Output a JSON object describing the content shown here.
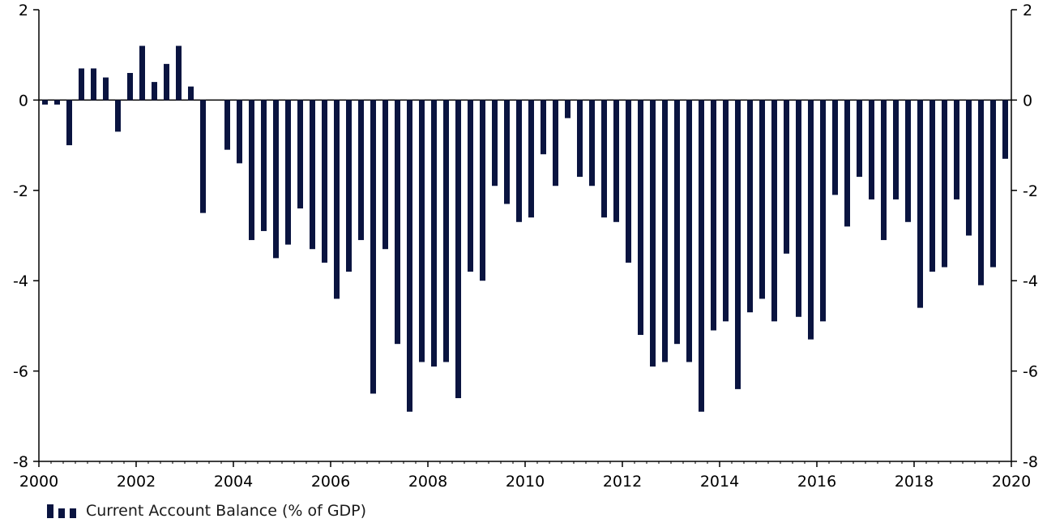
{
  "chart_data": {
    "type": "bar",
    "title": "",
    "xlabel": "",
    "ylabel": "",
    "ylim": [
      -8,
      2
    ],
    "xlim": [
      2000,
      2020
    ],
    "y_ticks_left": [
      "2",
      "0",
      "-2",
      "-4",
      "-6",
      "-8"
    ],
    "y_ticks_right": [
      "2",
      "0",
      "-2",
      "-4",
      "-6",
      "-8"
    ],
    "x_ticks": [
      "2000",
      "2002",
      "2004",
      "2006",
      "2008",
      "2010",
      "2012",
      "2014",
      "2016",
      "2018",
      "2020"
    ],
    "grid": false,
    "legend_position": "bottom-left",
    "bar_color": "#0a1440",
    "series": [
      {
        "name": "Current Account Balance (% of GDP)",
        "x": [
          "2000 Q1",
          "2000 Q2",
          "2000 Q3",
          "2000 Q4",
          "2001 Q1",
          "2001 Q2",
          "2001 Q3",
          "2001 Q4",
          "2002 Q1",
          "2002 Q2",
          "2002 Q3",
          "2002 Q4",
          "2003 Q1",
          "2003 Q2",
          "2003 Q3",
          "2003 Q4",
          "2004 Q1",
          "2004 Q2",
          "2004 Q3",
          "2004 Q4",
          "2005 Q1",
          "2005 Q2",
          "2005 Q3",
          "2005 Q4",
          "2006 Q1",
          "2006 Q2",
          "2006 Q3",
          "2006 Q4",
          "2007 Q1",
          "2007 Q2",
          "2007 Q3",
          "2007 Q4",
          "2008 Q1",
          "2008 Q2",
          "2008 Q3",
          "2008 Q4",
          "2009 Q1",
          "2009 Q2",
          "2009 Q3",
          "2009 Q4",
          "2010 Q1",
          "2010 Q2",
          "2010 Q3",
          "2010 Q4",
          "2011 Q1",
          "2011 Q2",
          "2011 Q3",
          "2011 Q4",
          "2012 Q1",
          "2012 Q2",
          "2012 Q3",
          "2012 Q4",
          "2013 Q1",
          "2013 Q2",
          "2013 Q3",
          "2013 Q4",
          "2014 Q1",
          "2014 Q2",
          "2014 Q3",
          "2014 Q4",
          "2015 Q1",
          "2015 Q2",
          "2015 Q3",
          "2015 Q4",
          "2016 Q1",
          "2016 Q2",
          "2016 Q3",
          "2016 Q4",
          "2017 Q1",
          "2017 Q2",
          "2017 Q3",
          "2017 Q4",
          "2018 Q1",
          "2018 Q2",
          "2018 Q3",
          "2018 Q4",
          "2019 Q1",
          "2019 Q2",
          "2019 Q3",
          "2019 Q4"
        ],
        "values": [
          -0.1,
          -0.1,
          -1.0,
          0.7,
          0.7,
          0.5,
          -0.7,
          0.6,
          1.2,
          0.4,
          0.8,
          1.2,
          0.3,
          -2.5,
          null,
          -1.1,
          -1.4,
          -3.1,
          -2.9,
          -3.5,
          -3.2,
          -2.4,
          -3.3,
          -3.6,
          -4.4,
          -3.8,
          -3.1,
          -6.5,
          -3.3,
          -5.4,
          -6.9,
          -5.8,
          -5.9,
          -5.8,
          -6.6,
          -3.8,
          -4.0,
          -1.9,
          -2.3,
          -2.7,
          -2.6,
          -1.2,
          -1.9,
          -0.4,
          -1.7,
          -1.9,
          -2.6,
          -2.7,
          -3.6,
          -5.2,
          -5.9,
          -5.8,
          -5.4,
          -5.8,
          -6.9,
          -5.1,
          -4.9,
          -6.4,
          -4.7,
          -4.4,
          -4.9,
          -3.4,
          -4.8,
          -5.3,
          -4.9,
          -2.1,
          -2.8,
          -1.7,
          -2.2,
          -3.1,
          -2.2,
          -2.7,
          -4.6,
          -3.8,
          -3.7,
          -2.2,
          -3.0,
          -4.1,
          -3.7,
          -1.3
        ]
      }
    ]
  }
}
